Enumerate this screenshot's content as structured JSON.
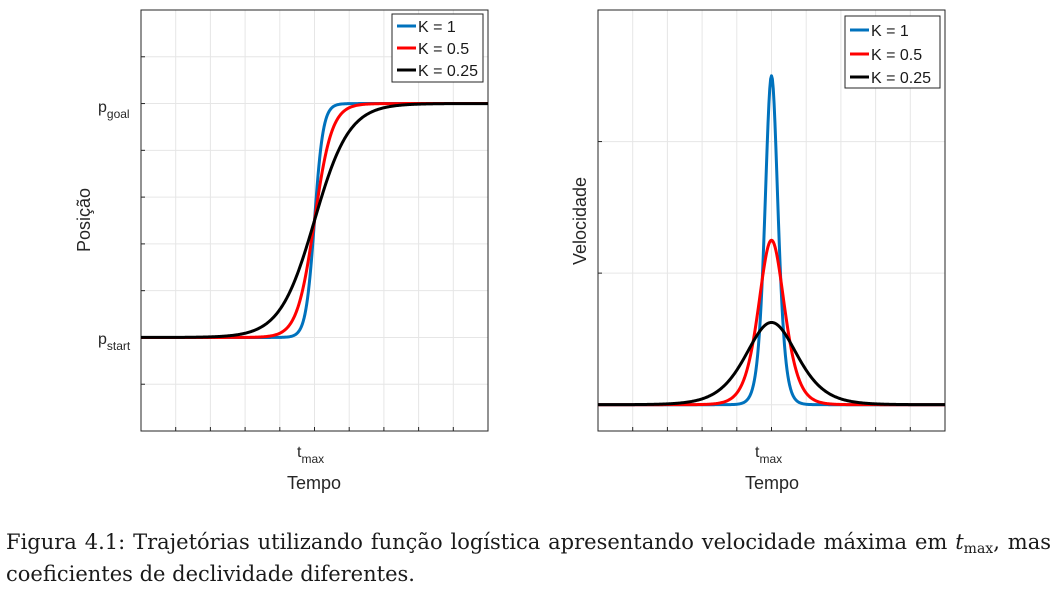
{
  "chart_data": [
    {
      "type": "line",
      "xlabel": "Tempo",
      "xtick_label": {
        "main": "t",
        "sub": "max"
      },
      "ylabel": "Posição",
      "ytick_labels": [
        {
          "main": "p",
          "sub": "goal"
        },
        {
          "main": "p",
          "sub": "start"
        }
      ],
      "xlim": [
        -10,
        10
      ],
      "ylim": [
        -0.4,
        1.4
      ],
      "t_max": 0,
      "grid": true,
      "legend_position": "top-right",
      "function": "logistic",
      "series": [
        {
          "name": "K = 1",
          "k": 1,
          "color": "#0072BD"
        },
        {
          "name": "K = 0.5",
          "k": 0.5,
          "color": "#FF0000"
        },
        {
          "name": "K = 0.25",
          "k": 0.25,
          "color": "#000000"
        }
      ]
    },
    {
      "type": "line",
      "xlabel": "Tempo",
      "xtick_label": {
        "main": "t",
        "sub": "max"
      },
      "ylabel": "Velocidade",
      "xlim": [
        -10,
        10
      ],
      "ylim": [
        -0.02,
        0.3
      ],
      "t_max": 0,
      "grid": true,
      "legend_position": "top-right",
      "function": "logistic-derivative",
      "series": [
        {
          "name": "K = 1",
          "k": 1,
          "color": "#0072BD",
          "peak": 0.25
        },
        {
          "name": "K = 0.5",
          "k": 0.5,
          "color": "#FF0000",
          "peak": 0.125
        },
        {
          "name": "K = 0.25",
          "k": 0.25,
          "color": "#000000",
          "peak": 0.0625
        }
      ]
    }
  ],
  "caption": {
    "prefix": "Figura 4.1: Trajetórias utilizando função logística apresentando velocidade máxima em",
    "math_main": "t",
    "math_sub": "max",
    "suffix": ", mas coeficientes de declividade diferentes."
  }
}
